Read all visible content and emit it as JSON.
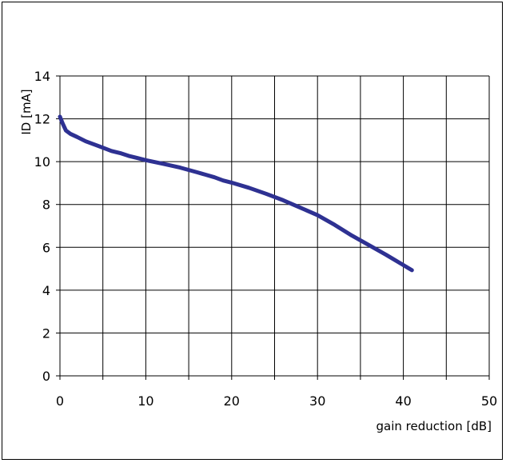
{
  "chart_data": {
    "type": "line",
    "title": "",
    "xlabel": "gain reduction [dB]",
    "ylabel": "ID [mA]",
    "xlim": [
      0,
      50
    ],
    "ylim": [
      0,
      14
    ],
    "xticks": [
      0,
      10,
      20,
      30,
      40,
      50
    ],
    "yticks": [
      0,
      2,
      4,
      6,
      8,
      10,
      12,
      14
    ],
    "grid": true,
    "line_color": "#2e3192",
    "series": [
      {
        "x": [
          0,
          0.3,
          0.7,
          1.2,
          2,
          3,
          4,
          5,
          6,
          7,
          8,
          9,
          10,
          12,
          14,
          16,
          18,
          19,
          20,
          22,
          24,
          26,
          28,
          30,
          32,
          34,
          36,
          38,
          40,
          41
        ],
        "y": [
          12.1,
          11.8,
          11.45,
          11.3,
          11.15,
          10.95,
          10.8,
          10.65,
          10.5,
          10.4,
          10.27,
          10.17,
          10.07,
          9.9,
          9.72,
          9.5,
          9.27,
          9.12,
          9.02,
          8.78,
          8.5,
          8.2,
          7.85,
          7.5,
          7.05,
          6.55,
          6.1,
          5.65,
          5.17,
          4.93
        ]
      }
    ]
  }
}
